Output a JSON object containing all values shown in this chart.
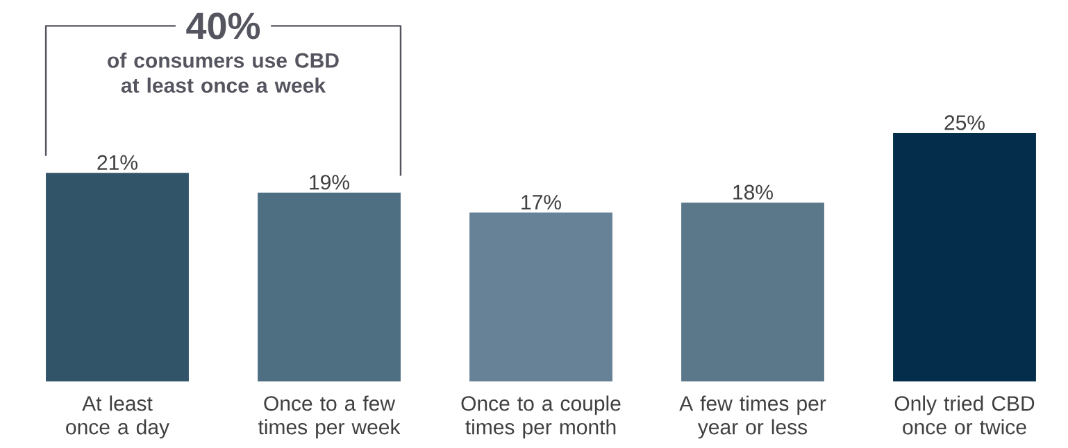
{
  "chart_data": {
    "type": "bar",
    "categories": [
      "At least once a day",
      "Once to a few times per week",
      "Once to a couple times per month",
      "A few times per year or less",
      "Only tried CBD once or twice"
    ],
    "values": [
      21,
      19,
      17,
      18,
      25
    ],
    "colors": [
      "#325469",
      "#4e6e82",
      "#678196",
      "#5b788b",
      "#032d4a"
    ],
    "value_labels": [
      "21%",
      "19%",
      "17%",
      "18%",
      "25%"
    ],
    "annotations": [
      "40%",
      "of consumers use CBD at least once a week"
    ]
  }
}
